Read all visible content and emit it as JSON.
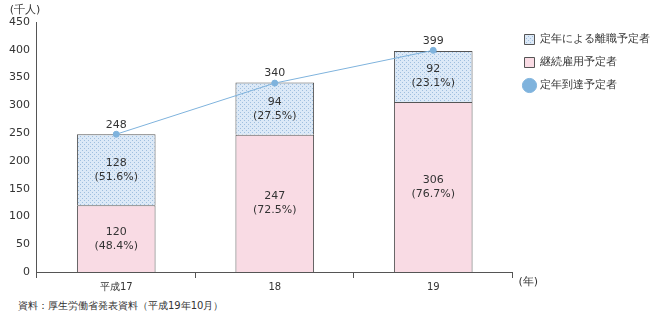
{
  "chart_data": {
    "type": "bar",
    "stacked": true,
    "y_label": "(千人)",
    "x_label": "(年)",
    "source": "資料：厚生労働省発表資料（平成19年10月）",
    "categories": [
      "平成17",
      "18",
      "19"
    ],
    "series": [
      {
        "name": "継続雇用予定者",
        "color": "#f9dbe4",
        "values": [
          120,
          247,
          306
        ],
        "value_labels": [
          [
            "120",
            "(48.4%)"
          ],
          [
            "247",
            "(72.5%)"
          ],
          [
            "306",
            "(76.7%)"
          ]
        ]
      },
      {
        "name": "定年による離職予定者",
        "color": "#dce9f7",
        "values": [
          128,
          94,
          92
        ],
        "value_labels": [
          [
            "128",
            "(51.6%)"
          ],
          [
            "94",
            "(27.5%)"
          ],
          [
            "92",
            "(23.1%)"
          ]
        ]
      },
      {
        "name": "定年到達予定者",
        "type": "line",
        "color": "#7fb3dd",
        "marker": "circle",
        "values": [
          248,
          340,
          399
        ]
      }
    ],
    "ylim": [
      0,
      450
    ],
    "yticks": [
      0,
      50,
      100,
      150,
      200,
      250,
      300,
      350,
      400,
      450
    ],
    "grid": false,
    "legend": "right",
    "data_labels": true
  }
}
